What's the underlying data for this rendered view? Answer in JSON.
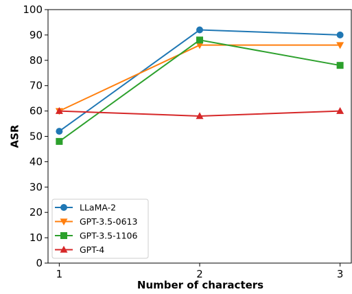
{
  "chart_data": {
    "type": "line",
    "x": [
      1,
      2,
      3
    ],
    "xticks": [
      "1",
      "2",
      "3"
    ],
    "yticks": [
      "0",
      "10",
      "20",
      "30",
      "40",
      "50",
      "60",
      "70",
      "80",
      "90",
      "100"
    ],
    "xlabel": "Number of characters",
    "ylabel": "ASR",
    "xlim": [
      0.92,
      3.08
    ],
    "ylim": [
      0,
      100
    ],
    "grid": false,
    "legend_position": "lower-left",
    "series": [
      {
        "name": "LLaMA-2",
        "values": [
          52,
          92,
          90
        ],
        "color": "#1f77b4",
        "marker": "circle"
      },
      {
        "name": "GPT-3.5-0613",
        "values": [
          60,
          86,
          86
        ],
        "color": "#ff7f0e",
        "marker": "triangle-down"
      },
      {
        "name": "GPT-3.5-1106",
        "values": [
          48,
          88,
          78
        ],
        "color": "#2ca02c",
        "marker": "square"
      },
      {
        "name": "GPT-4",
        "values": [
          60,
          58,
          60
        ],
        "color": "#d62728",
        "marker": "triangle-up"
      }
    ]
  }
}
